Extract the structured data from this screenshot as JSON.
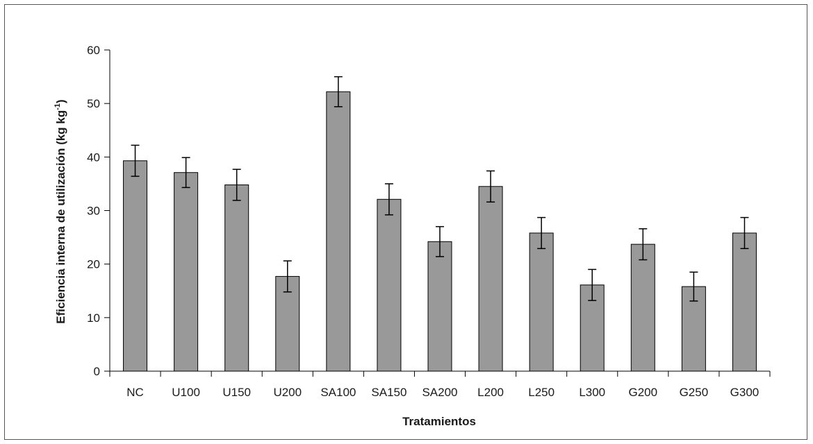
{
  "chart_data": {
    "type": "bar",
    "title": "",
    "xlabel": "Tratamientos",
    "ylabel": "Eficiencia interna de utilización (kg kg",
    "ylabel_superscript": "-1",
    "ylabel_close": ")",
    "ylim": [
      0,
      60
    ],
    "yticks": [
      0,
      10,
      20,
      30,
      40,
      50,
      60
    ],
    "grid": false,
    "legend": "none",
    "bar_color": "#999999",
    "categories": [
      "NC",
      "U100",
      "U150",
      "U200",
      "SA100",
      "SA150",
      "SA200",
      "L200",
      "L250",
      "L300",
      "G200",
      "G250",
      "G300"
    ],
    "values": [
      39.3,
      37.1,
      34.8,
      17.7,
      52.2,
      32.1,
      24.2,
      34.5,
      25.8,
      16.1,
      23.7,
      15.8,
      25.8
    ],
    "error": [
      2.9,
      2.8,
      2.9,
      2.9,
      2.8,
      2.9,
      2.8,
      2.9,
      2.9,
      2.9,
      2.9,
      2.7,
      2.9
    ]
  }
}
